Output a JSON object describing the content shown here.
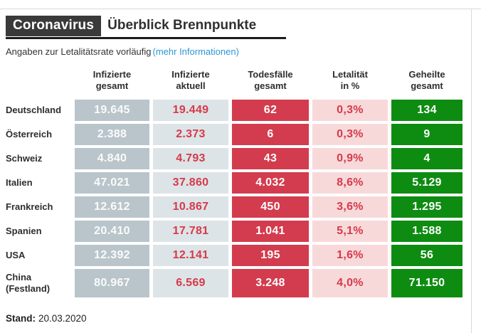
{
  "header": {
    "kicker": "Coronavirus",
    "title": "Überblick Brennpunkte",
    "subtitle": "Angaben zur Letalitätsrate vorläufig",
    "more_info_link": "(mehr Informationen)"
  },
  "chart_data": {
    "type": "table",
    "title": "Coronavirus Überblick Brennpunkte",
    "columns": [
      "Infizierte gesamt",
      "Infizierte aktuell",
      "Todesfälle gesamt",
      "Letalität in %",
      "Geheilte gesamt"
    ],
    "column_headers_display": [
      "Infizierte\ngesamt",
      "Infizierte\naktuell",
      "Todesfälle\ngesamt",
      "Letalität\nin %",
      "Geheilte\ngesamt"
    ],
    "rows": [
      {
        "country": "Deutschland",
        "infected_total": "19.645",
        "infected_current": "19.449",
        "deaths_total": "62",
        "lethality_pct": "0,3%",
        "recovered_total": "134"
      },
      {
        "country": "Österreich",
        "infected_total": "2.388",
        "infected_current": "2.373",
        "deaths_total": "6",
        "lethality_pct": "0,3%",
        "recovered_total": "9"
      },
      {
        "country": "Schweiz",
        "infected_total": "4.840",
        "infected_current": "4.793",
        "deaths_total": "43",
        "lethality_pct": "0,9%",
        "recovered_total": "4"
      },
      {
        "country": "Italien",
        "infected_total": "47.021",
        "infected_current": "37.860",
        "deaths_total": "4.032",
        "lethality_pct": "8,6%",
        "recovered_total": "5.129"
      },
      {
        "country": "Frankreich",
        "infected_total": "12.612",
        "infected_current": "10.867",
        "deaths_total": "450",
        "lethality_pct": "3,6%",
        "recovered_total": "1.295"
      },
      {
        "country": "Spanien",
        "infected_total": "20.410",
        "infected_current": "17.781",
        "deaths_total": "1.041",
        "lethality_pct": "5,1%",
        "recovered_total": "1.588"
      },
      {
        "country": "USA",
        "infected_total": "12.392",
        "infected_current": "12.141",
        "deaths_total": "195",
        "lethality_pct": "1,6%",
        "recovered_total": "56"
      },
      {
        "country": "China\n(Festland)",
        "infected_total": "80.967",
        "infected_current": "6.569",
        "deaths_total": "3.248",
        "lethality_pct": "4,0%",
        "recovered_total": "71.150"
      }
    ]
  },
  "footer": {
    "stand_label": "Stand:",
    "stand_date": "20.03.2020"
  },
  "colors": {
    "kicker_bg": "#3a3a3a",
    "infected_total_bg": "#b9c5cb",
    "infected_current_bg": "#dde4e7",
    "deaths_bg": "#d33c4e",
    "lethality_bg": "#f8d9da",
    "recovered_bg": "#0d8c11",
    "number_red": "#d63a4b",
    "link_blue": "#2e97d1",
    "border_gray": "#d9d9d9"
  }
}
